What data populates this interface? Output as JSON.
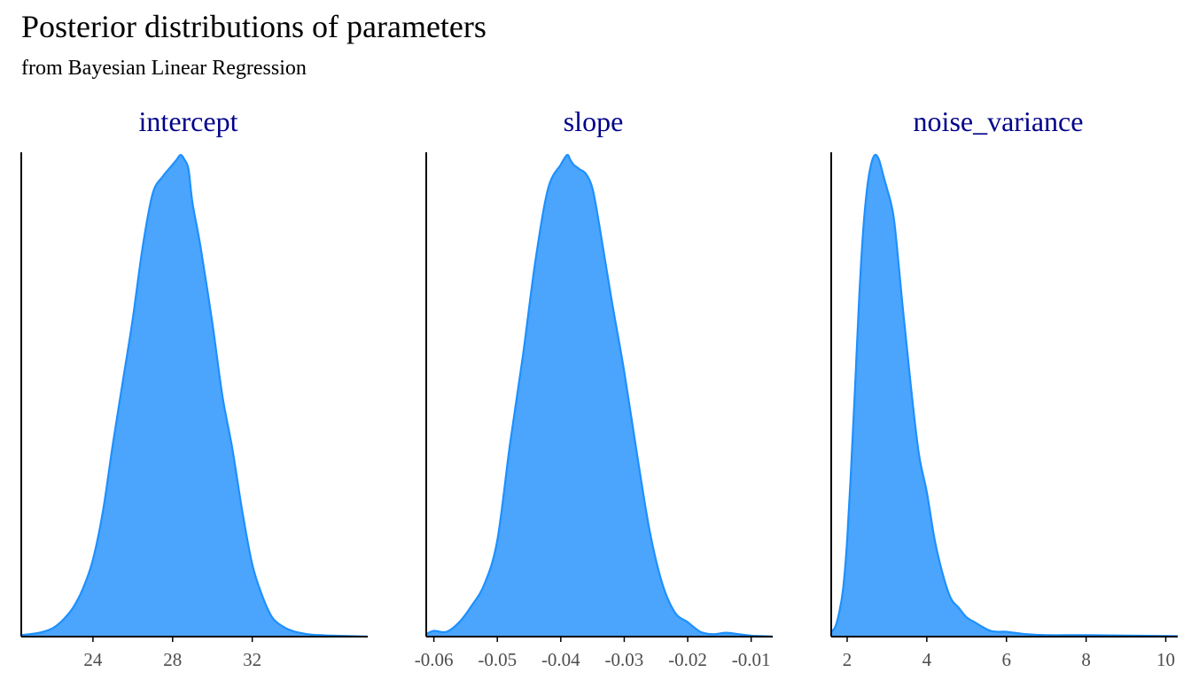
{
  "title": "Posterior distributions of parameters",
  "subtitle": "from Bayesian Linear Regression",
  "colors": {
    "fill": "#4BA5FD",
    "line": "#1E90FF",
    "strip_text": "#00008B",
    "axis": "#000000",
    "tick_text": "#4D4D4D"
  },
  "chart_data": [
    {
      "type": "area",
      "title": "intercept",
      "x_range": [
        20.4,
        37.8
      ],
      "ticks": [
        24,
        28,
        32
      ],
      "tick_labels": [
        "24",
        "28",
        "32"
      ],
      "x": [
        20.4,
        21.0,
        21.5,
        22.0,
        22.5,
        23.0,
        23.5,
        24.0,
        24.5,
        25.0,
        25.5,
        26.0,
        26.5,
        27.0,
        27.5,
        27.9,
        28.2,
        28.4,
        28.6,
        28.8,
        29.0,
        29.4,
        30.0,
        30.5,
        31.0,
        31.5,
        32.0,
        32.5,
        33.0,
        33.5,
        34.0,
        34.5,
        35.0,
        35.5,
        36.0,
        37.0,
        37.8
      ],
      "density": [
        0.003,
        0.006,
        0.01,
        0.018,
        0.035,
        0.06,
        0.1,
        0.16,
        0.26,
        0.4,
        0.53,
        0.66,
        0.81,
        0.92,
        0.955,
        0.975,
        0.99,
        1.0,
        0.99,
        0.97,
        0.9,
        0.81,
        0.65,
        0.5,
        0.39,
        0.26,
        0.15,
        0.085,
        0.04,
        0.022,
        0.012,
        0.007,
        0.004,
        0.003,
        0.002,
        0.001,
        0.0
      ]
    },
    {
      "type": "area",
      "title": "slope",
      "x_range": [
        -0.0612,
        -0.0066
      ],
      "ticks": [
        -0.06,
        -0.05,
        -0.04,
        -0.03,
        -0.02,
        -0.01
      ],
      "tick_labels": [
        "-0.06",
        "-0.05",
        "-0.04",
        "-0.03",
        "-0.02",
        "-0.01"
      ],
      "x": [
        -0.0612,
        -0.06,
        -0.058,
        -0.056,
        -0.054,
        -0.052,
        -0.05,
        -0.048,
        -0.046,
        -0.044,
        -0.042,
        -0.04,
        -0.039,
        -0.0385,
        -0.038,
        -0.0375,
        -0.037,
        -0.036,
        -0.035,
        -0.034,
        -0.032,
        -0.03,
        -0.028,
        -0.026,
        -0.024,
        -0.022,
        -0.02,
        -0.018,
        -0.016,
        -0.014,
        -0.012,
        -0.01,
        -0.008,
        -0.0066
      ],
      "density": [
        0.005,
        0.012,
        0.01,
        0.03,
        0.065,
        0.11,
        0.2,
        0.4,
        0.58,
        0.78,
        0.93,
        0.98,
        1.0,
        0.99,
        0.98,
        0.975,
        0.97,
        0.96,
        0.93,
        0.86,
        0.7,
        0.55,
        0.38,
        0.22,
        0.11,
        0.05,
        0.03,
        0.01,
        0.005,
        0.008,
        0.005,
        0.002,
        0.001,
        0.0
      ]
    },
    {
      "type": "area",
      "title": "noise_variance",
      "x_range": [
        1.6,
        10.3
      ],
      "ticks": [
        2,
        4,
        6,
        8,
        10
      ],
      "tick_labels": [
        "2",
        "4",
        "6",
        "8",
        "10"
      ],
      "x": [
        1.6,
        1.7,
        1.8,
        1.9,
        2.0,
        2.1,
        2.2,
        2.3,
        2.4,
        2.5,
        2.6,
        2.7,
        2.8,
        2.9,
        3.0,
        3.1,
        3.2,
        3.4,
        3.6,
        3.8,
        4.0,
        4.2,
        4.4,
        4.6,
        4.8,
        5.0,
        5.2,
        5.4,
        5.6,
        5.8,
        6.0,
        6.5,
        7.0,
        8.0,
        9.0,
        10.3
      ],
      "density": [
        0.01,
        0.02,
        0.05,
        0.1,
        0.2,
        0.35,
        0.52,
        0.7,
        0.84,
        0.93,
        0.98,
        1.0,
        0.99,
        0.96,
        0.93,
        0.9,
        0.85,
        0.68,
        0.52,
        0.38,
        0.3,
        0.2,
        0.13,
        0.08,
        0.06,
        0.04,
        0.03,
        0.02,
        0.012,
        0.01,
        0.01,
        0.005,
        0.003,
        0.003,
        0.002,
        0.001
      ]
    }
  ]
}
